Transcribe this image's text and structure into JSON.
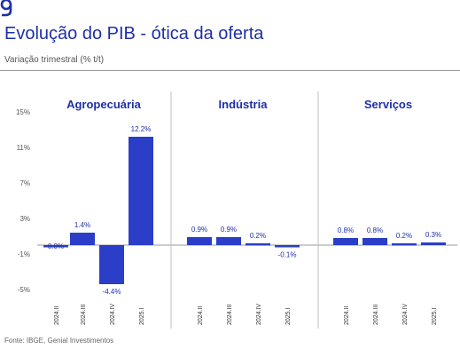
{
  "header": {
    "title": "Evolução do PIB - ótica da oferta",
    "subtitle": "Variação trimestral (% t/t)"
  },
  "footer": {
    "source": "Fonte: IBGE, Genial Investimentos"
  },
  "colors": {
    "bar": "#2a3ec8",
    "text": "#1f2fa8",
    "axis": "#555555",
    "divider": "#bfbfbf"
  },
  "icons": {
    "logo": "genial-logo-icon"
  },
  "chart_data": {
    "type": "bar",
    "ylim": [
      -5,
      15
    ],
    "yticks": [
      -5,
      -1,
      3,
      7,
      11,
      15
    ],
    "ytick_labels": [
      "-5%",
      "-1%",
      "3%",
      "7%",
      "11%",
      "15%"
    ],
    "grid": false,
    "panels": [
      {
        "name": "Agropecuária",
        "categories": [
          "2024.II",
          "2024.III",
          "2024.IV",
          "2025.I"
        ],
        "values": [
          0.0,
          1.4,
          -4.4,
          12.2
        ],
        "labels": [
          "0.0%",
          "1.4%",
          "-4.4%",
          "12.2%"
        ]
      },
      {
        "name": "Indústria",
        "categories": [
          "2024.II",
          "2024.III",
          "2024.IV",
          "2025.I"
        ],
        "values": [
          0.9,
          0.9,
          0.2,
          -0.1
        ],
        "labels": [
          "0.9%",
          "0.9%",
          "0.2%",
          "-0.1%"
        ]
      },
      {
        "name": "Serviços",
        "categories": [
          "2024.II",
          "2024.III",
          "2024.IV",
          "2025.I"
        ],
        "values": [
          0.8,
          0.8,
          0.2,
          0.3
        ],
        "labels": [
          "0.8%",
          "0.8%",
          "0.2%",
          "0.3%"
        ]
      }
    ]
  }
}
